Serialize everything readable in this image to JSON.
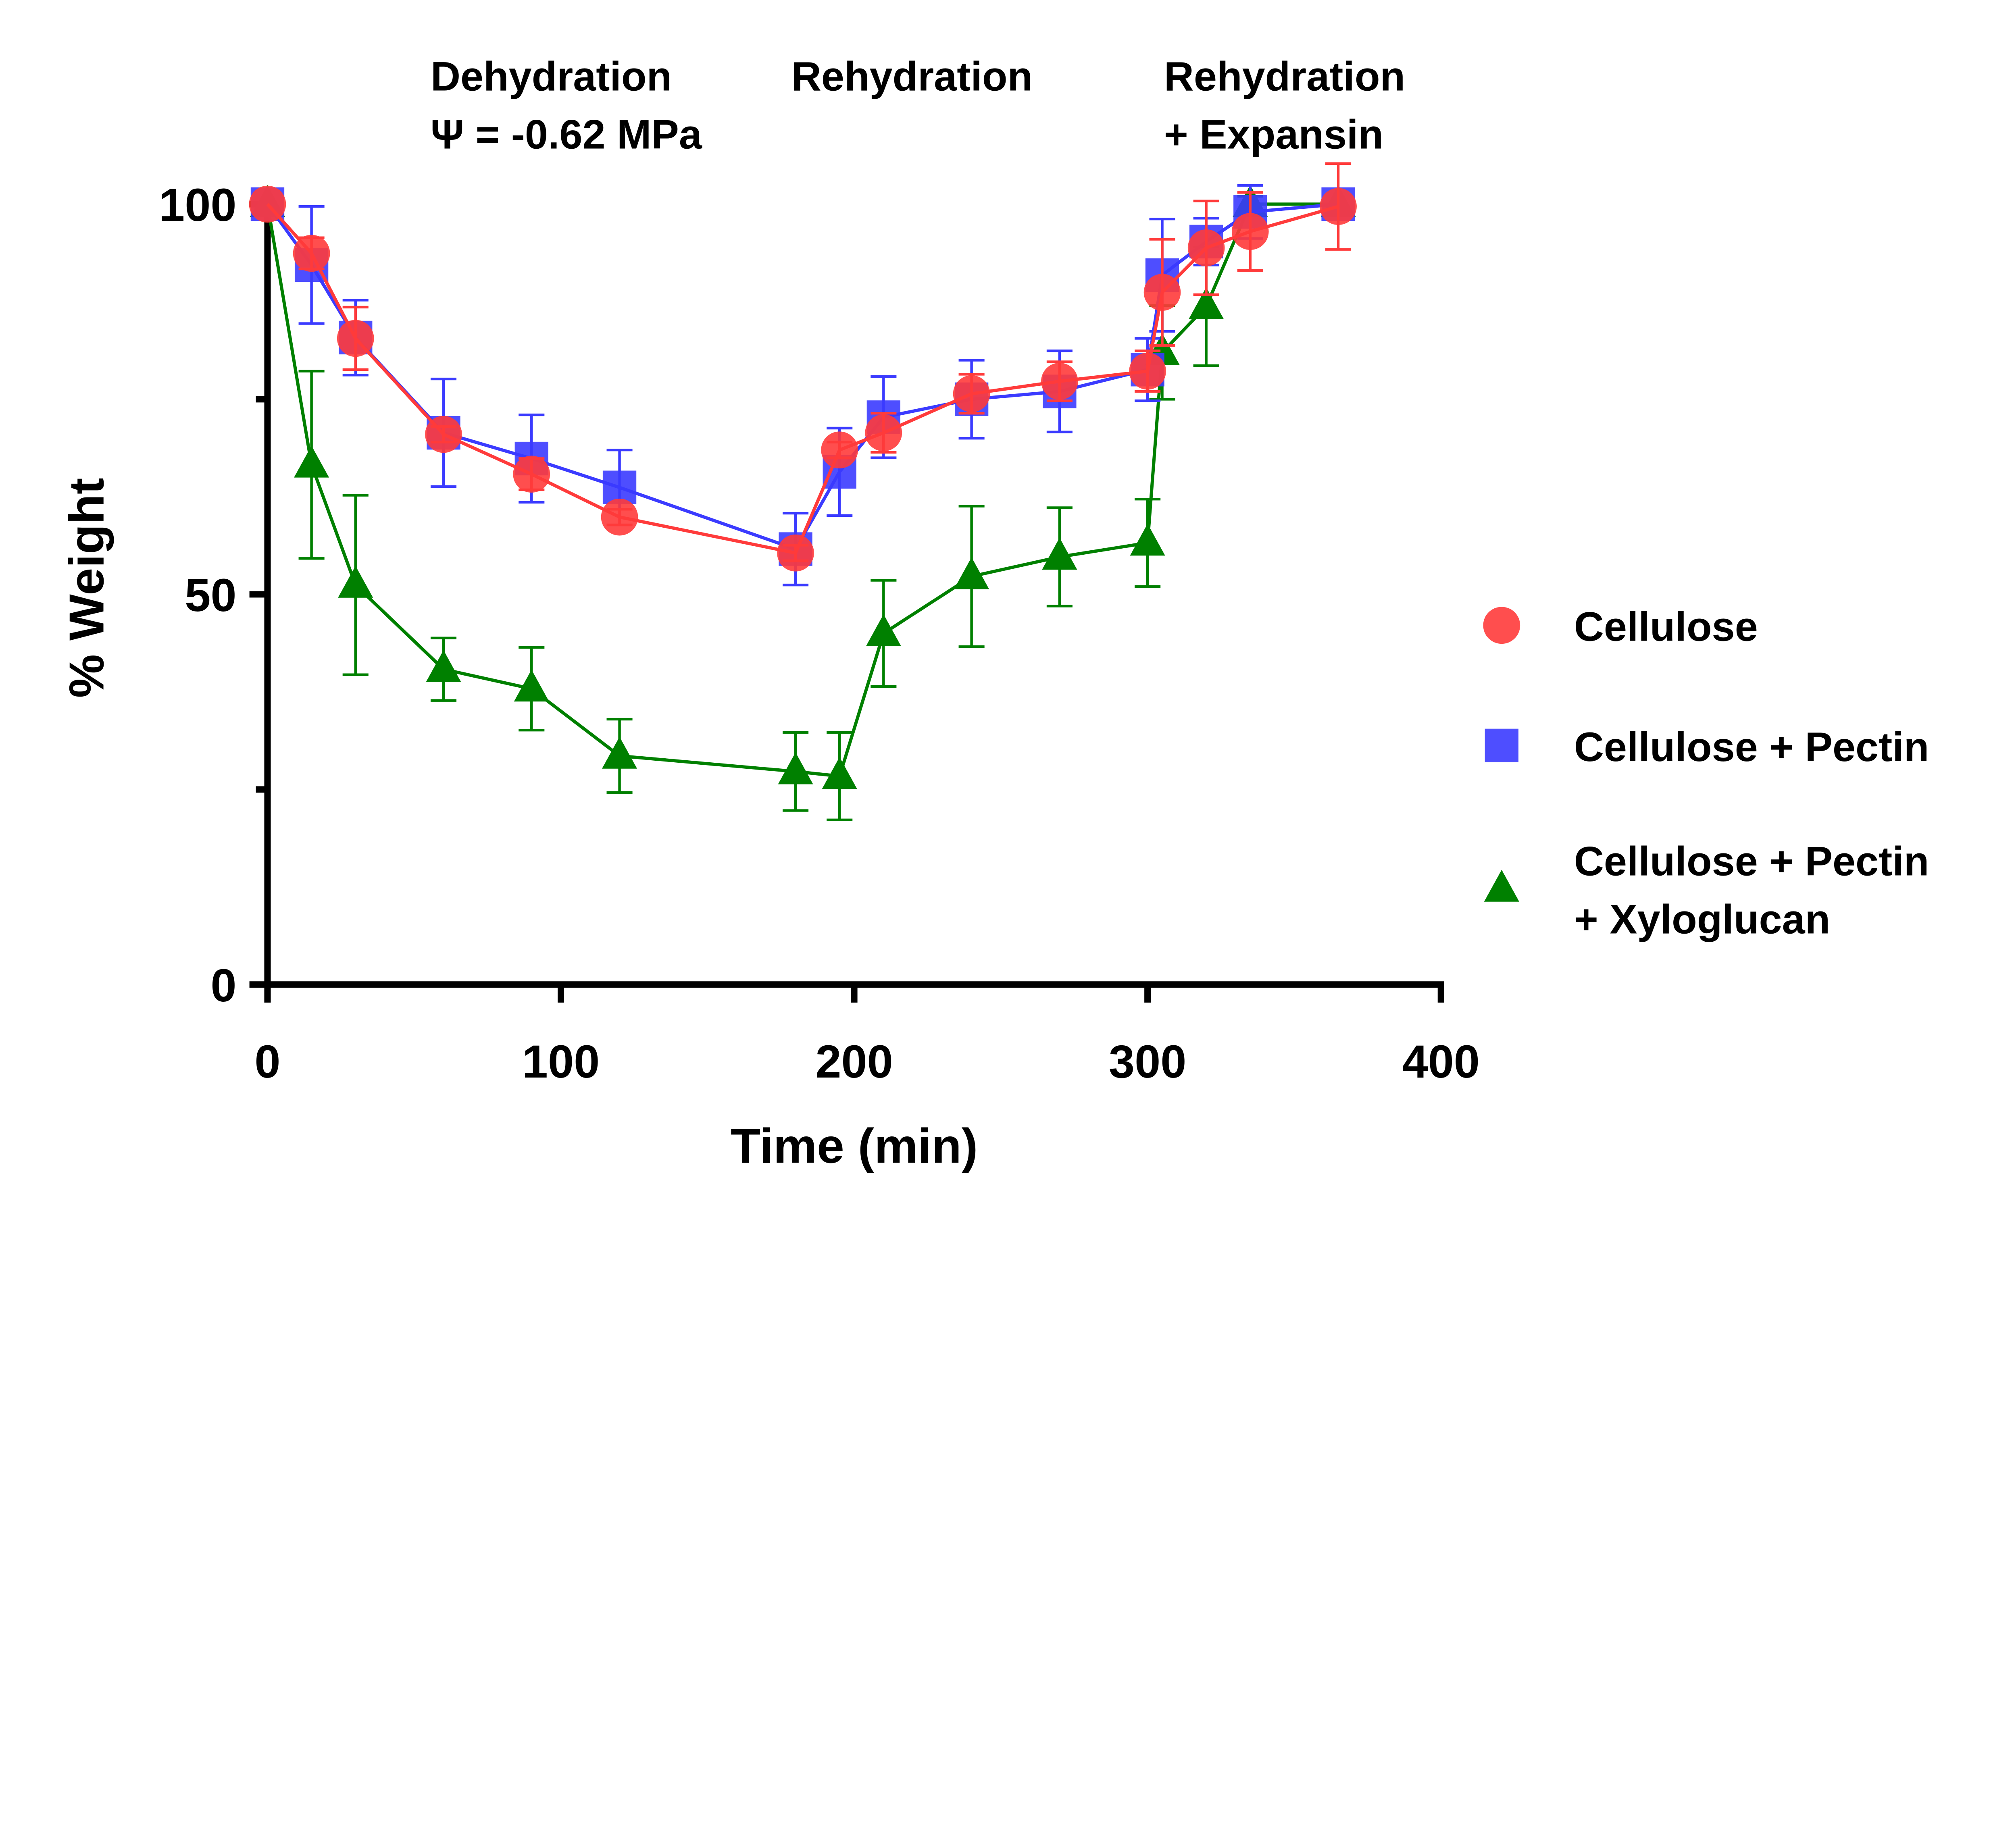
{
  "chart_data": {
    "type": "line",
    "title": "",
    "xlabel": "Time (min)",
    "ylabel": "% Weight",
    "xlim": [
      0,
      400
    ],
    "ylim": [
      0,
      100
    ],
    "x_ticks": [
      "0",
      "100",
      "200",
      "300",
      "400"
    ],
    "y_ticks": [
      "0",
      "50",
      "100"
    ],
    "y_minor_ticks": [
      25,
      75
    ],
    "grid": false,
    "legend_position": "right",
    "annotations": [
      {
        "lines": [
          "Dehydration",
          "Ψ = -0.62 MPa"
        ],
        "x": 60
      },
      {
        "lines": [
          "Rehydration"
        ],
        "x": 183
      },
      {
        "lines": [
          "Rehydration",
          "+ Expansin"
        ],
        "x": 310
      }
    ],
    "series": [
      {
        "name": "Cellulose",
        "legend_lines": [
          "Cellulose"
        ],
        "color": "#ff3b3b",
        "marker": "circle",
        "x": [
          0,
          15,
          30,
          60,
          90,
          120,
          180,
          195,
          210,
          240,
          270,
          300,
          305,
          320,
          335,
          365
        ],
        "y": [
          100,
          93.7,
          82.8,
          70.5,
          65.4,
          59.9,
          55.3,
          68.5,
          70.7,
          75.7,
          77.3,
          78.6,
          88.7,
          94.4,
          96.5,
          99.7
        ],
        "err": [
          0,
          2,
          4,
          1,
          2,
          1,
          1,
          1,
          2.5,
          2.5,
          2.5,
          2.6,
          6.8,
          6,
          5,
          5.5
        ]
      },
      {
        "name": "Cellulose + Pectin",
        "legend_lines": [
          "Cellulose + Pectin"
        ],
        "color": "#3b3bff",
        "marker": "square",
        "x": [
          0,
          15,
          30,
          60,
          90,
          120,
          180,
          195,
          210,
          240,
          270,
          300,
          305,
          320,
          335,
          365
        ],
        "y": [
          100,
          92.2,
          82.9,
          70.7,
          67.4,
          63.7,
          55.8,
          65.7,
          72.7,
          75,
          76,
          78.8,
          90.9,
          95.2,
          99,
          100
        ],
        "err": [
          0,
          7.5,
          4.8,
          6.9,
          5.6,
          4.8,
          4.6,
          5.6,
          5.2,
          5,
          5.2,
          4,
          7.2,
          3,
          3.4,
          0
        ]
      },
      {
        "name": "Cellulose + Pectin + Xyloglucan",
        "legend_lines": [
          "Cellulose + Pectin",
          "+ Xyloglucan"
        ],
        "color": "#008000",
        "marker": "triangle",
        "x": [
          0,
          15,
          30,
          60,
          90,
          120,
          180,
          195,
          210,
          240,
          270,
          300,
          305,
          320,
          335,
          365
        ],
        "y": [
          100,
          66.6,
          51.2,
          40.4,
          37.9,
          29.3,
          27.3,
          26.7,
          45,
          52.3,
          54.8,
          56.6,
          81,
          86.9,
          100,
          100
        ],
        "err": [
          0,
          12,
          11.5,
          4,
          5.3,
          4.7,
          5,
          5.6,
          6.8,
          9,
          6.3,
          5.6,
          6,
          7.6,
          1,
          0
        ]
      }
    ]
  }
}
